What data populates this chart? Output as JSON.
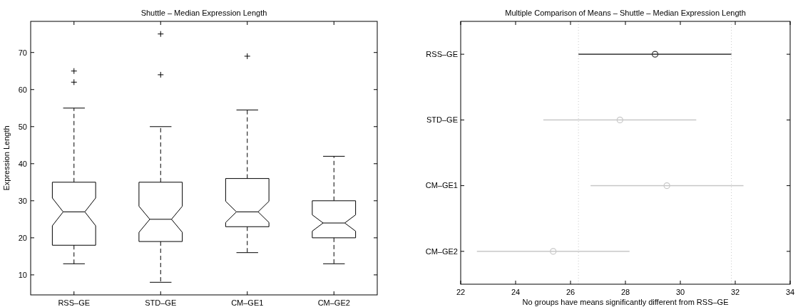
{
  "chart_data": [
    {
      "type": "box",
      "title": "Shuttle – Median Expression Length",
      "ylabel": "Expression Length",
      "categories": [
        "RSS–GE",
        "STD–GE",
        "CM–GE1",
        "CM–GE2"
      ],
      "boxes": [
        {
          "low": 13,
          "q1": 18,
          "median": 27,
          "q3": 35,
          "high": 55,
          "outliers": [
            62,
            65
          ]
        },
        {
          "low": 8,
          "q1": 19,
          "median": 25,
          "q3": 35,
          "high": 50,
          "outliers": [
            64,
            75
          ]
        },
        {
          "low": 16,
          "q1": 23,
          "median": 27,
          "q3": 36,
          "high": 54.5,
          "outliers": [
            69
          ]
        },
        {
          "low": 13,
          "q1": 20,
          "median": 24,
          "q3": 30,
          "high": 42
        }
      ],
      "ylim": [
        4.6,
        78.4
      ],
      "yticks": [
        10,
        20,
        30,
        40,
        50,
        60,
        70
      ]
    },
    {
      "type": "bar",
      "orientation": "horizontal",
      "title": "Multiple Comparison of Means – Shuttle – Median Expression Length",
      "xlabel": "No groups have means significantly different from RSS–GE",
      "categories": [
        "RSS–GE",
        "STD–GE",
        "CM–GE1",
        "CM–GE2"
      ],
      "series": [
        {
          "type": "bar",
          "base": [
            26.29,
            25.01,
            26.73,
            22.59
          ],
          "values": [
            5.57,
            5.57,
            5.57,
            5.56
          ],
          "colors": [
            "#333333",
            "#c8c8c8",
            "#c8c8c8",
            "#c8c8c8"
          ]
        },
        {
          "type": "scatter",
          "x": [
            "RSS–GE",
            "STD–GE",
            "CM–GE1",
            "CM–GE2"
          ],
          "values": [
            29.08,
            27.8,
            29.51,
            25.37
          ],
          "colors": [
            "#333333",
            "#c8c8c8",
            "#c8c8c8",
            "#c8c8c8"
          ]
        }
      ],
      "marker": "circle",
      "xlim": [
        22,
        34
      ],
      "xticks": [
        22,
        24,
        26,
        28,
        30,
        32,
        34
      ],
      "ref_lines": [
        {
          "axis": "x",
          "value": 26.29,
          "color": "#c8c8c8",
          "line_style": "dotted"
        },
        {
          "axis": "x",
          "value": 31.86,
          "color": "#c8c8c8",
          "line_style": "dotted"
        }
      ]
    }
  ]
}
